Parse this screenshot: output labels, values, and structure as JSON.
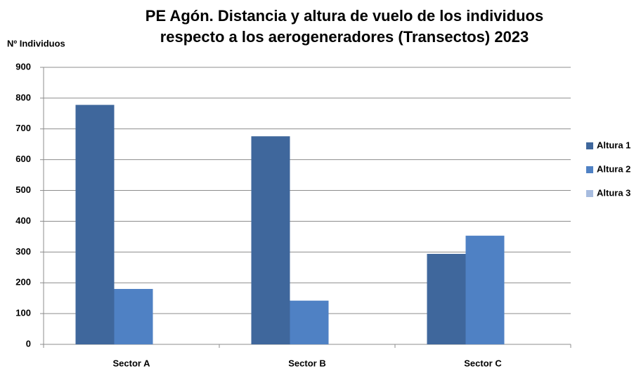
{
  "chart_data": {
    "type": "bar",
    "title": [
      "PE Agón. Distancia y altura de vuelo de los individuos",
      "respecto a los aerogeneradores (Transectos) 2023"
    ],
    "y_label": "Nº Individuos",
    "categories": [
      "Sector A",
      "Sector B",
      "Sector C"
    ],
    "series": [
      {
        "name": "Altura 1",
        "color": "#3f679c",
        "values": [
          778,
          676,
          294
        ]
      },
      {
        "name": "Altura 2",
        "color": "#4f81c4",
        "values": [
          180,
          142,
          353
        ]
      },
      {
        "name": "Altura 3",
        "color": "#a7bcdf",
        "values": [
          0,
          0,
          0
        ]
      }
    ],
    "ylim": [
      0,
      900
    ],
    "yticks": [
      0,
      100,
      200,
      300,
      400,
      500,
      600,
      700,
      800,
      900
    ],
    "grid": true,
    "legend": "right"
  }
}
